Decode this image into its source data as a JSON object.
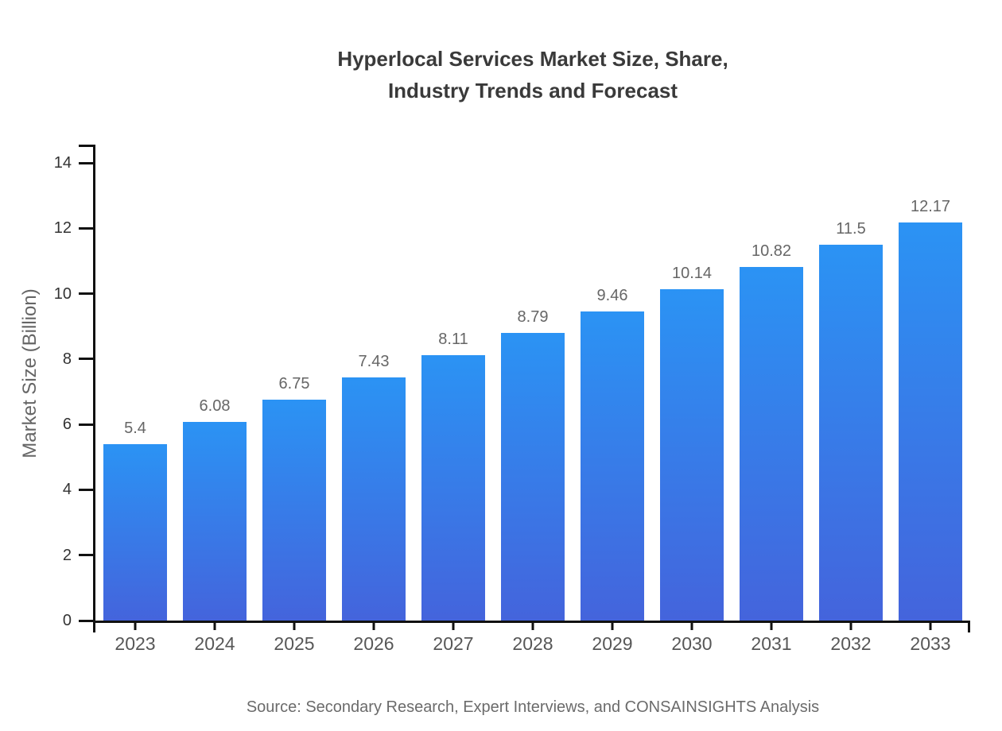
{
  "chart_data": {
    "type": "bar",
    "title": "Hyperlocal Services Market Size, Share, Industry Trends and Forecast",
    "title_lines": [
      "Hyperlocal Services Market Size, Share,",
      "Industry Trends and Forecast"
    ],
    "xlabel": "",
    "ylabel": "Market Size (Billion)",
    "categories": [
      "2023",
      "2024",
      "2025",
      "2026",
      "2027",
      "2028",
      "2029",
      "2030",
      "2031",
      "2032",
      "2033"
    ],
    "values": [
      5.4,
      6.08,
      6.75,
      7.43,
      8.11,
      8.79,
      9.46,
      10.14,
      10.82,
      11.5,
      12.17
    ],
    "value_labels": [
      "5.4",
      "6.08",
      "6.75",
      "7.43",
      "8.11",
      "8.79",
      "9.46",
      "10.14",
      "10.82",
      "11.5",
      "12.17"
    ],
    "ylim": [
      0,
      14
    ],
    "yticks": [
      0,
      2,
      4,
      6,
      8,
      10,
      12,
      14
    ],
    "grid": false,
    "legend": "none",
    "bar_color_top": "#2b93f4",
    "bar_color_bottom": "#4464dc"
  },
  "footer": {
    "source": "Source: Secondary Research, Expert Interviews, and CONSAINSIGHTS Analysis"
  }
}
